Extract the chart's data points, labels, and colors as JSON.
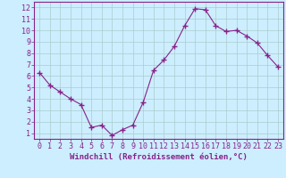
{
  "hours": [
    0,
    1,
    2,
    3,
    4,
    5,
    6,
    7,
    8,
    9,
    10,
    11,
    12,
    13,
    14,
    15,
    16,
    17,
    18,
    19,
    20,
    21,
    22,
    23
  ],
  "values": [
    6.3,
    5.2,
    4.6,
    4.0,
    3.5,
    1.5,
    1.7,
    0.8,
    1.3,
    1.7,
    3.7,
    6.5,
    7.4,
    8.6,
    10.4,
    11.9,
    11.8,
    10.4,
    9.9,
    10.0,
    9.5,
    8.9,
    7.8,
    6.8
  ],
  "line_color": "#882288",
  "marker": "+",
  "marker_size": 4,
  "bg_color": "#cceeff",
  "grid_color": "#aacccc",
  "xlabel": "Windchill (Refroidissement éolien,°C)",
  "xlabel_color": "#882288",
  "ylabel_ticks": [
    1,
    2,
    3,
    4,
    5,
    6,
    7,
    8,
    9,
    10,
    11,
    12
  ],
  "xlim": [
    -0.5,
    23.5
  ],
  "ylim": [
    0.5,
    12.5
  ],
  "tick_color": "#882288",
  "axis_color": "#882288",
  "label_fontsize": 6.5,
  "tick_fontsize": 6.0
}
